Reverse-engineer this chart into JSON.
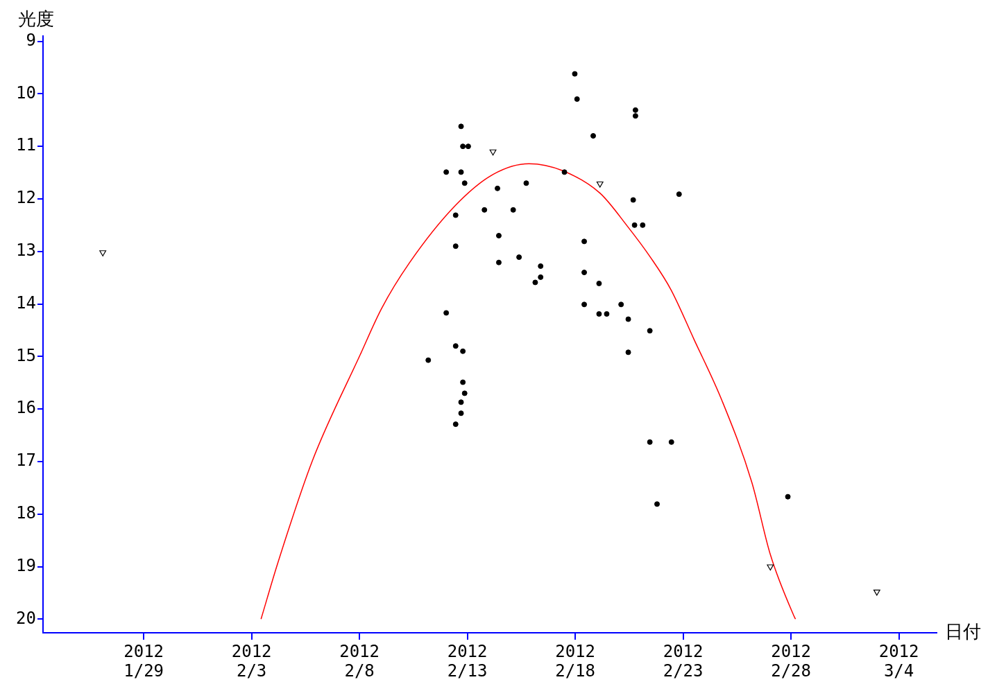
{
  "chart_data": {
    "type": "scatter",
    "xlabel": "日付",
    "ylabel": "光度",
    "xlim": [
      "2012-01-24T08:00",
      "2012-03-05T18:00"
    ],
    "ylim": [
      20.26,
      8.9
    ],
    "xticks": [
      {
        "value": "2012-01-29",
        "label": "2012\n1/29"
      },
      {
        "value": "2012-02-03",
        "label": "2012\n2/3"
      },
      {
        "value": "2012-02-08",
        "label": "2012\n2/8"
      },
      {
        "value": "2012-02-13",
        "label": "2012\n2/13"
      },
      {
        "value": "2012-02-18",
        "label": "2012\n2/18"
      },
      {
        "value": "2012-02-23",
        "label": "2012\n2/23"
      },
      {
        "value": "2012-02-28",
        "label": "2012\n2/28"
      },
      {
        "value": "2012-03-04",
        "label": "2012\n3/4"
      }
    ],
    "yticks": [
      9,
      10,
      11,
      12,
      13,
      14,
      15,
      16,
      17,
      18,
      19,
      20
    ],
    "grid": false,
    "legend": false,
    "series": [
      {
        "type": "scatter",
        "marker": "circle",
        "color": "#000000",
        "x": [
          "2012-02-12T17:00",
          "2012-02-12T19:00",
          "2012-02-13T01:00",
          "2012-02-12T00:30",
          "2012-02-12T17:00",
          "2012-02-12T21:00",
          "2012-02-14T09:30",
          "2012-02-15T17:30",
          "2012-02-12T11:00",
          "2012-02-13T19:00",
          "2012-02-15T03:00",
          "2012-02-14T11:00",
          "2012-02-12T11:00",
          "2012-02-14T11:00",
          "2012-02-15T09:30",
          "2012-02-16T09:30",
          "2012-02-16T09:30",
          "2012-02-16T03:30",
          "2012-02-12T00:30",
          "2012-02-12T11:00",
          "2012-02-12T19:00",
          "2012-02-11T04:30",
          "2012-02-12T19:00",
          "2012-02-12T21:00",
          "2012-02-12T17:00",
          "2012-02-12T17:00",
          "2012-02-12T11:00",
          "2012-02-17T23:30",
          "2012-02-18T02:00",
          "2012-02-20T19:00",
          "2012-02-20T19:00",
          "2012-02-18T20:00",
          "2012-02-17T12:00",
          "2012-02-20T16:30",
          "2012-02-22T19:30",
          "2012-02-20T18:00",
          "2012-02-21T03:00",
          "2012-02-18T10:00",
          "2012-02-18T10:00",
          "2012-02-18T10:00",
          "2012-02-19T02:30",
          "2012-02-19T02:30",
          "2012-02-19T11:00",
          "2012-02-20T03:00",
          "2012-02-20T11:00",
          "2012-02-20T11:00",
          "2012-02-21T11:00",
          "2012-02-21T11:00",
          "2012-02-22T11:00",
          "2012-02-21T19:00",
          "2012-02-27T20:30"
        ],
        "values": [
          10.62,
          11.0,
          11.0,
          11.49,
          11.49,
          11.7,
          11.8,
          11.7,
          12.31,
          12.21,
          12.21,
          12.7,
          12.9,
          13.21,
          13.11,
          13.28,
          13.49,
          13.59,
          14.17,
          14.8,
          14.9,
          15.07,
          15.49,
          15.7,
          15.87,
          16.08,
          16.29,
          9.62,
          10.1,
          10.31,
          10.42,
          10.8,
          11.49,
          12.02,
          11.91,
          12.5,
          12.5,
          12.81,
          13.4,
          14.01,
          13.61,
          14.19,
          14.19,
          14.01,
          14.29,
          14.92,
          14.51,
          16.63,
          16.63,
          17.81,
          17.67
        ]
      },
      {
        "type": "scatter",
        "marker": "triangle",
        "color": "#000000",
        "x": [
          "2012-01-27T02:30",
          "2012-02-14T04:30",
          "2012-02-19T03:30",
          "2012-02-27T01:00",
          "2012-03-02T23:30"
        ],
        "values": [
          13.02,
          11.1,
          11.71,
          19.0,
          19.48
        ]
      },
      {
        "type": "line",
        "marker": "none",
        "color": "#ff0000",
        "x": [
          "2012-02-03T10:30",
          "2012-02-04T05:00",
          "2012-02-05T19:30",
          "2012-02-08T01:00",
          "2012-02-09T00:30",
          "2012-02-10T07:30",
          "2012-02-12T11:00",
          "2012-02-14T05:00",
          "2012-02-15T20:30",
          "2012-02-17T09:30",
          "2012-02-19T03:30",
          "2012-02-20T10:00",
          "2012-02-21T12:00",
          "2012-02-22T10:30",
          "2012-02-23T12:00",
          "2012-02-24T19:00",
          "2012-02-26T04:30",
          "2012-02-27T01:00",
          "2012-02-28T03:00",
          "2012-02-28T05:00"
        ],
        "values": [
          20.0,
          18.94,
          16.99,
          14.96,
          14.09,
          13.22,
          12.12,
          11.53,
          11.33,
          11.46,
          11.89,
          12.52,
          13.12,
          13.73,
          14.67,
          15.83,
          17.4,
          18.77,
          19.93,
          20.0
        ]
      }
    ]
  }
}
